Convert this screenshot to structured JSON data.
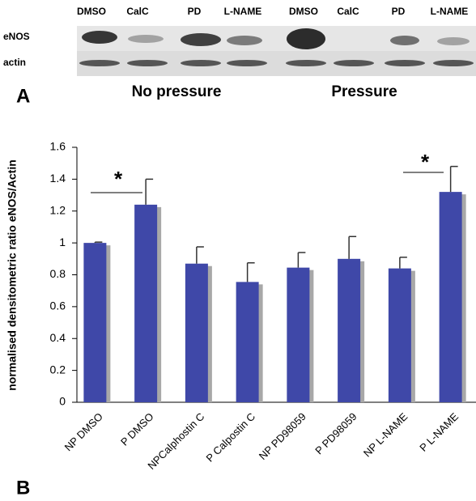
{
  "panel_a": {
    "label": "A",
    "lanes": [
      "DMSO",
      "CalC",
      "PD",
      "L-NAME",
      "DMSO",
      "CalC",
      "PD",
      "L-NAME"
    ],
    "rows": [
      "eNOS",
      "actin"
    ],
    "groups": [
      "No pressure",
      "Pressure"
    ]
  },
  "panel_b_label": "B",
  "chart_data": {
    "type": "bar",
    "y_label": "normalised densitometric ratio eNOS/Actin",
    "categories": [
      "NP DMSO",
      "P DMSO",
      "NPCalphostin C",
      "P Calpostin C",
      "NP PD98059",
      "P PD98059",
      "NP L-NAME",
      "P L-NAME"
    ],
    "values": [
      1.0,
      1.24,
      0.87,
      0.755,
      0.845,
      0.9,
      0.84,
      1.32
    ],
    "errors": [
      0.005,
      0.16,
      0.105,
      0.12,
      0.095,
      0.14,
      0.07,
      0.16
    ],
    "color": "#3f48a8",
    "ylim": [
      0,
      1.6
    ],
    "yticks": [
      0,
      0.2,
      0.4,
      0.6,
      0.8,
      1,
      1.2,
      1.4,
      1.6
    ],
    "annotations": [
      "*",
      "*"
    ]
  }
}
